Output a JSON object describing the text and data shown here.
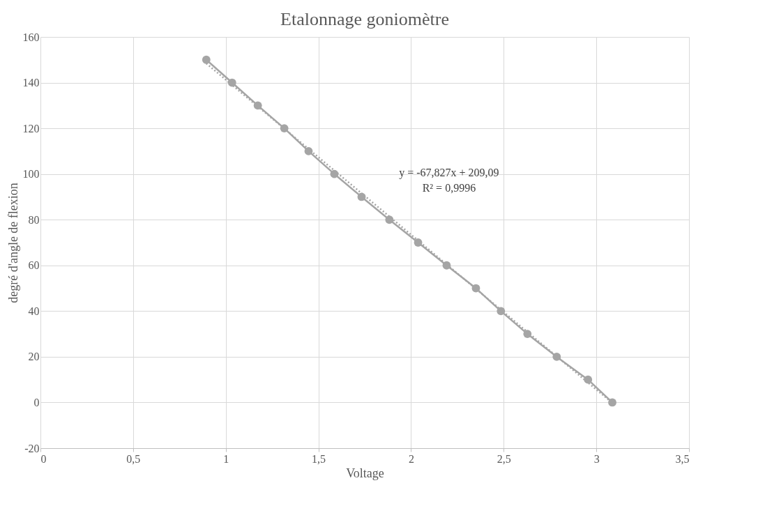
{
  "chart_data": {
    "type": "line",
    "title": "Etalonnage goniomètre",
    "xlabel": "Voltage",
    "ylabel": "degré d'angle de flexion",
    "x": [
      0.895,
      1.034,
      1.173,
      1.316,
      1.447,
      1.586,
      1.733,
      1.883,
      2.038,
      2.192,
      2.35,
      2.485,
      2.628,
      2.786,
      2.955,
      3.086
    ],
    "series": [
      {
        "color": "#a5a5a5",
        "marker": "circle",
        "line_style": "solid",
        "values": [
          150,
          140,
          130,
          120,
          110,
          100,
          90,
          80,
          70,
          60,
          50,
          40,
          30,
          20,
          10,
          0
        ]
      },
      {
        "type": "line",
        "color": "#a5a5a5",
        "marker": "none",
        "line_style": "dotted",
        "x": [
          0.895,
          3.086
        ],
        "values": [
          148.4,
          -0.2
        ]
      }
    ],
    "annotations": [
      "y = -67,827x + 209,09",
      "R² = 0,9996"
    ],
    "xlim": [
      0,
      3.5
    ],
    "xticks": [
      0,
      {
        "value": 0.5,
        "label": "0,5"
      },
      1,
      {
        "value": 1.5,
        "label": "1,5"
      },
      2,
      {
        "value": 2.5,
        "label": "2,5"
      },
      3,
      {
        "value": 3.5,
        "label": "3,5"
      }
    ],
    "ylim": [
      -20,
      160
    ],
    "yticks": [
      -20,
      0,
      20,
      40,
      60,
      80,
      100,
      120,
      140,
      160
    ],
    "grid": true
  }
}
